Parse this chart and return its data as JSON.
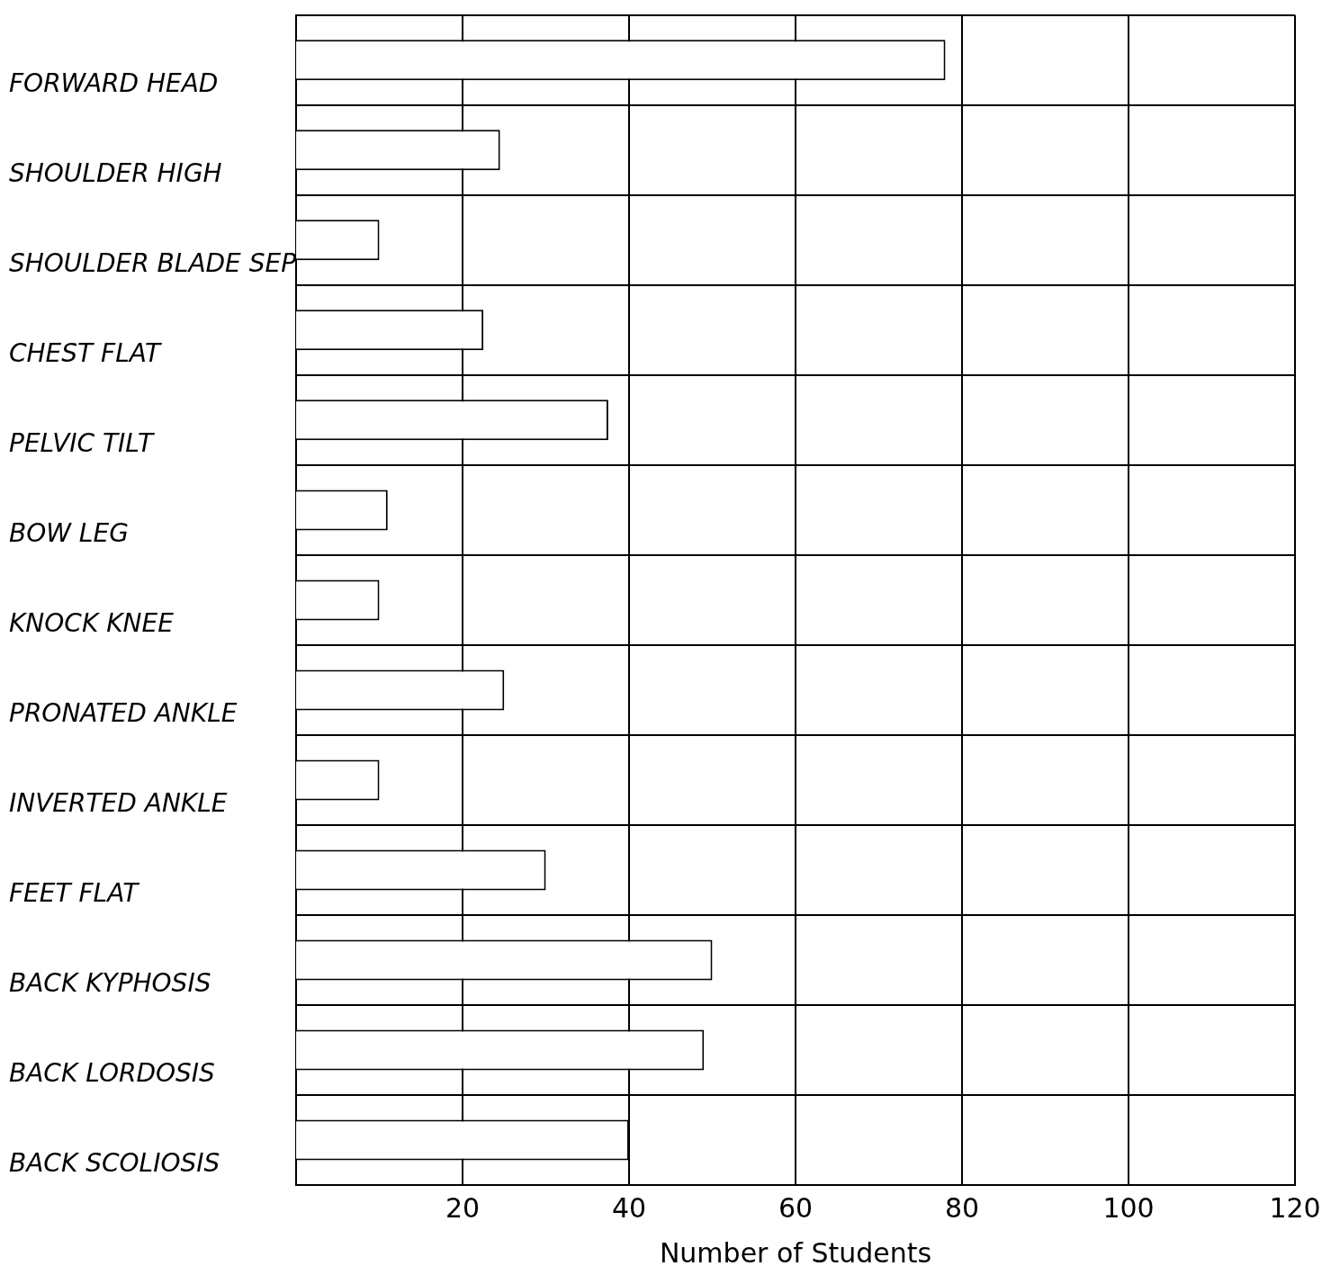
{
  "chart_data": {
    "type": "bar",
    "orientation": "horizontal",
    "xlabel": "Number of Students",
    "categories": [
      "FORWARD HEAD",
      "SHOULDER HIGH",
      "SHOULDER BLADE SEP",
      "CHEST FLAT",
      "PELVIC TILT",
      "BOW LEG",
      "KNOCK KNEE",
      "PRONATED ANKLE",
      "INVERTED ANKLE",
      "FEET FLAT",
      "BACK KYPHOSIS",
      "BACK LORDOSIS",
      "BACK SCOLIOSIS"
    ],
    "values": [
      78,
      24.5,
      10,
      22.5,
      37.5,
      11,
      10,
      25,
      10,
      30,
      50,
      49,
      40
    ],
    "color": "#ffffff",
    "xlim": [
      0,
      120
    ],
    "xticks": [
      20,
      40,
      60,
      80,
      100,
      120
    ],
    "grid": true,
    "legend": false
  }
}
